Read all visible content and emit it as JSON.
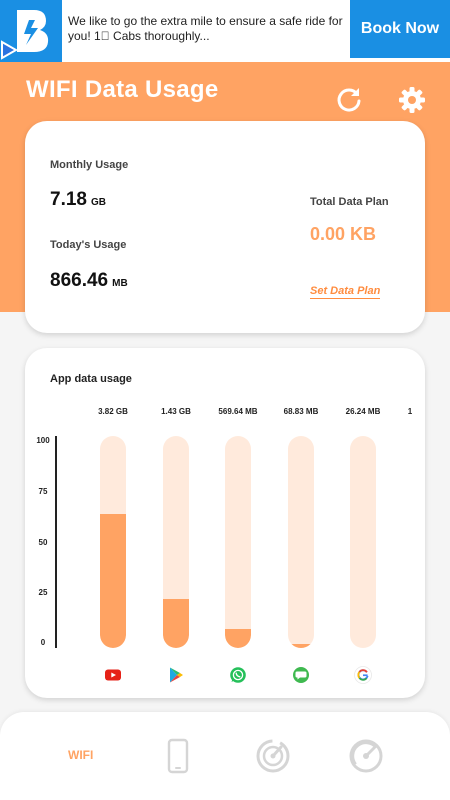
{
  "ad": {
    "logo_letter": "B",
    "text": "We like to go the extra mile to ensure a safe ride for you! 1\u0000 Cabs thoroughly...",
    "button": "Book Now"
  },
  "header": {
    "title": "WIFI Data Usage",
    "icons": [
      "refresh-icon",
      "gear-icon"
    ]
  },
  "summary": {
    "monthly_label": "Monthly Usage",
    "monthly_value": "7.18",
    "monthly_unit": "GB",
    "today_label": "Today's Usage",
    "today_value": "866.46",
    "today_unit": "MB",
    "plan_label": "Total Data Plan",
    "plan_value": "0.00 KB",
    "plan_link": "Set Data Plan"
  },
  "apps": {
    "title": "App data usage",
    "y_ticks": [
      "100",
      "75",
      "50",
      "25",
      "0"
    ],
    "items": [
      {
        "value": "3.82 GB",
        "percent": 63,
        "icon": "youtube-icon"
      },
      {
        "value": "1.43 GB",
        "percent": 23,
        "icon": "play-store-icon"
      },
      {
        "value": "569.64 MB",
        "percent": 9,
        "icon": "whatsapp-icon"
      },
      {
        "value": "68.83 MB",
        "percent": 2,
        "icon": "chat-icon"
      },
      {
        "value": "26.24 MB",
        "percent": 0,
        "icon": "google-icon"
      }
    ],
    "overflow_label": "1"
  },
  "nav": {
    "wifi_label": "WIFI",
    "icons": [
      "phone-icon",
      "speedometer-icon",
      "gauge-icon"
    ]
  },
  "colors": {
    "accent": "#ffa363",
    "accent_dark": "#ff8c3f",
    "track": "#ffeadc",
    "ad_blue": "#1a8fe3"
  }
}
